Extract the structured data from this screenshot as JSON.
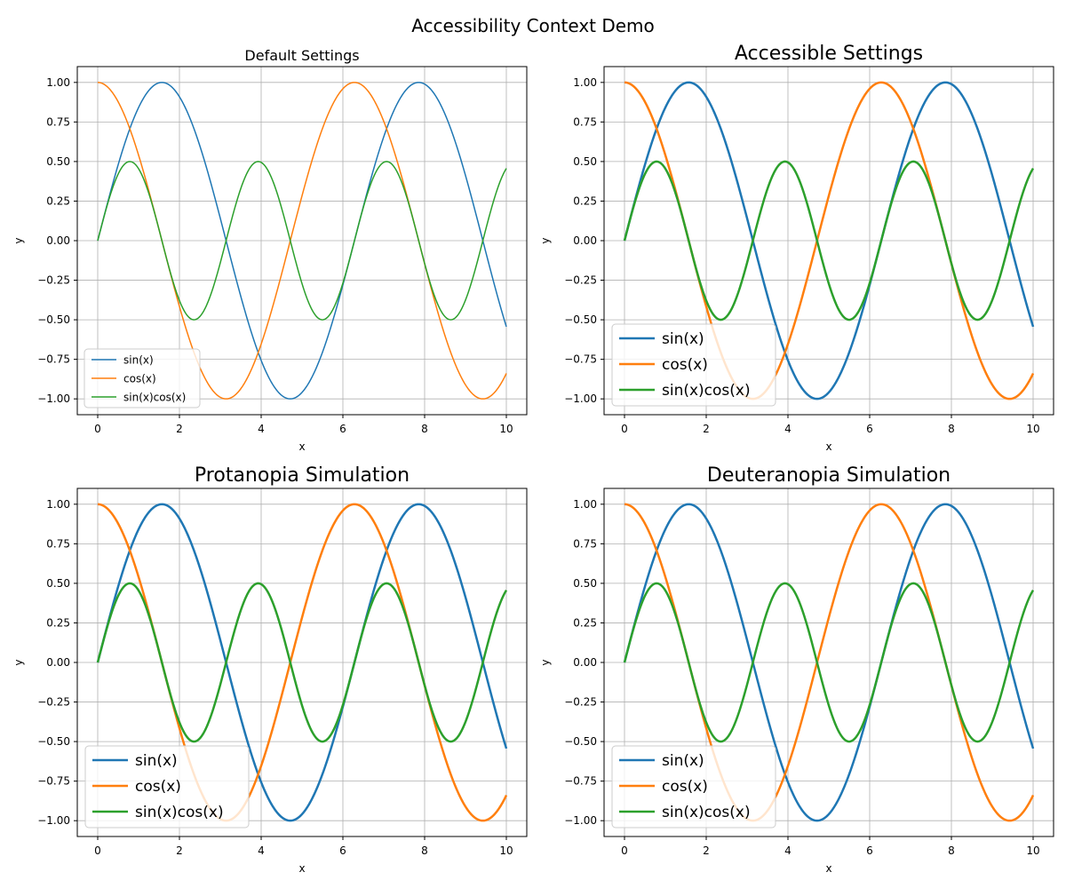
{
  "figure": {
    "suptitle": "Accessibility Context Demo"
  },
  "colors": {
    "sin": "#1f77b4",
    "cos": "#ff7f0e",
    "sincos": "#2ca02c",
    "grid": "#b0b0b0",
    "axis": "#000000"
  },
  "chart_data": [
    {
      "type": "line",
      "title": "Default Settings",
      "xlabel": "x",
      "ylabel": "y",
      "xlim": [
        -0.5,
        10.5
      ],
      "ylim": [
        -1.1,
        1.1
      ],
      "xticks": [
        0,
        2,
        4,
        6,
        8,
        10
      ],
      "xtick_labels": [
        "0",
        "2",
        "4",
        "6",
        "8",
        "10"
      ],
      "yticks": [
        1.0,
        0.75,
        0.5,
        0.25,
        0.0,
        -0.25,
        -0.5,
        -0.75,
        -1.0
      ],
      "ytick_labels": [
        "1.00",
        "0.75",
        "0.50",
        "0.25",
        "0.00",
        "−0.25",
        "−0.50",
        "−0.75",
        "−1.00"
      ],
      "grid": true,
      "legend_position": "lower-left",
      "style": "default",
      "series": [
        {
          "name": "sin(x)",
          "color": "#1f77b4",
          "x": [
            0,
            0.5,
            1,
            1.5708,
            2,
            2.5,
            3,
            3.1416,
            3.5,
            4,
            4.5,
            4.7124,
            5,
            5.5,
            6,
            6.2832,
            6.5,
            7,
            7.5,
            7.854,
            8,
            8.5,
            9,
            9.4248,
            9.5,
            10
          ],
          "y": [
            0,
            0.479,
            0.841,
            1.0,
            0.909,
            0.598,
            0.141,
            0,
            -0.351,
            -0.757,
            -0.978,
            -1.0,
            -0.959,
            -0.706,
            -0.279,
            0,
            0.215,
            0.657,
            0.938,
            1.0,
            0.989,
            0.798,
            0.412,
            0,
            -0.075,
            -0.544
          ]
        },
        {
          "name": "cos(x)",
          "color": "#ff7f0e",
          "x": [
            0,
            0.5,
            1,
            1.5708,
            2,
            2.5,
            3,
            3.1416,
            3.5,
            4,
            4.5,
            4.7124,
            5,
            5.5,
            6,
            6.2832,
            6.5,
            7,
            7.5,
            7.854,
            8,
            8.5,
            9,
            9.4248,
            9.5,
            10
          ],
          "y": [
            1.0,
            0.878,
            0.54,
            0,
            -0.416,
            -0.801,
            -0.99,
            -1.0,
            -0.936,
            -0.654,
            -0.211,
            0,
            0.284,
            0.709,
            0.96,
            1.0,
            0.977,
            0.754,
            0.347,
            0,
            -0.146,
            -0.602,
            -0.911,
            -1.0,
            -0.997,
            -0.839
          ]
        },
        {
          "name": "sin(x)cos(x)",
          "color": "#2ca02c",
          "x": [
            0,
            0.3927,
            0.7854,
            1.1781,
            1.5708,
            1.9635,
            2.3562,
            2.7489,
            3.1416,
            3.5343,
            3.927,
            4.3197,
            4.7124,
            5.1051,
            5.4978,
            5.8905,
            6.2832,
            6.6759,
            7.0686,
            7.4613,
            7.854,
            8.2467,
            8.6394,
            9.0321,
            9.4248,
            9.8175,
            10
          ],
          "y": [
            0,
            0.354,
            0.5,
            0.354,
            0,
            -0.354,
            -0.5,
            -0.354,
            0,
            0.354,
            0.5,
            0.354,
            0,
            -0.354,
            -0.5,
            -0.354,
            0,
            0.354,
            0.5,
            0.354,
            0,
            -0.354,
            -0.5,
            -0.354,
            0,
            0.354,
            0.456
          ]
        }
      ]
    },
    {
      "type": "line",
      "title": "Accessible Settings",
      "xlabel": "x",
      "ylabel": "y",
      "xlim": [
        -0.5,
        10.5
      ],
      "ylim": [
        -1.1,
        1.1
      ],
      "xticks": [
        0,
        2,
        4,
        6,
        8,
        10
      ],
      "xtick_labels": [
        "0",
        "2",
        "4",
        "6",
        "8",
        "10"
      ],
      "yticks": [
        1.0,
        0.75,
        0.5,
        0.25,
        0.0,
        -0.25,
        -0.5,
        -0.75,
        -1.0
      ],
      "ytick_labels": [
        "1.00",
        "0.75",
        "0.50",
        "0.25",
        "0.00",
        "−0.25",
        "−0.50",
        "−0.75",
        "−1.00"
      ],
      "grid": true,
      "legend_position": "lower-left",
      "style": "accessible",
      "series": [
        {
          "name": "sin(x)",
          "color": "#1f77b4",
          "x": [
            0,
            0.5,
            1,
            1.5708,
            2,
            2.5,
            3,
            3.1416,
            3.5,
            4,
            4.5,
            4.7124,
            5,
            5.5,
            6,
            6.2832,
            6.5,
            7,
            7.5,
            7.854,
            8,
            8.5,
            9,
            9.4248,
            9.5,
            10
          ],
          "y": [
            0,
            0.479,
            0.841,
            1.0,
            0.909,
            0.598,
            0.141,
            0,
            -0.351,
            -0.757,
            -0.978,
            -1.0,
            -0.959,
            -0.706,
            -0.279,
            0,
            0.215,
            0.657,
            0.938,
            1.0,
            0.989,
            0.798,
            0.412,
            0,
            -0.075,
            -0.544
          ]
        },
        {
          "name": "cos(x)",
          "color": "#ff7f0e",
          "x": [
            0,
            0.5,
            1,
            1.5708,
            2,
            2.5,
            3,
            3.1416,
            3.5,
            4,
            4.5,
            4.7124,
            5,
            5.5,
            6,
            6.2832,
            6.5,
            7,
            7.5,
            7.854,
            8,
            8.5,
            9,
            9.4248,
            9.5,
            10
          ],
          "y": [
            1.0,
            0.878,
            0.54,
            0,
            -0.416,
            -0.801,
            -0.99,
            -1.0,
            -0.936,
            -0.654,
            -0.211,
            0,
            0.284,
            0.709,
            0.96,
            1.0,
            0.977,
            0.754,
            0.347,
            0,
            -0.146,
            -0.602,
            -0.911,
            -1.0,
            -0.997,
            -0.839
          ]
        },
        {
          "name": "sin(x)cos(x)",
          "color": "#2ca02c",
          "x": [
            0,
            0.3927,
            0.7854,
            1.1781,
            1.5708,
            1.9635,
            2.3562,
            2.7489,
            3.1416,
            3.5343,
            3.927,
            4.3197,
            4.7124,
            5.1051,
            5.4978,
            5.8905,
            6.2832,
            6.6759,
            7.0686,
            7.4613,
            7.854,
            8.2467,
            8.6394,
            9.0321,
            9.4248,
            9.8175,
            10
          ],
          "y": [
            0,
            0.354,
            0.5,
            0.354,
            0,
            -0.354,
            -0.5,
            -0.354,
            0,
            0.354,
            0.5,
            0.354,
            0,
            -0.354,
            -0.5,
            -0.354,
            0,
            0.354,
            0.5,
            0.354,
            0,
            -0.354,
            -0.5,
            -0.354,
            0,
            0.354,
            0.456
          ]
        }
      ]
    },
    {
      "type": "line",
      "title": "Protanopia Simulation",
      "xlabel": "x",
      "ylabel": "y",
      "xlim": [
        -0.5,
        10.5
      ],
      "ylim": [
        -1.1,
        1.1
      ],
      "xticks": [
        0,
        2,
        4,
        6,
        8,
        10
      ],
      "xtick_labels": [
        "0",
        "2",
        "4",
        "6",
        "8",
        "10"
      ],
      "yticks": [
        1.0,
        0.75,
        0.5,
        0.25,
        0.0,
        -0.25,
        -0.5,
        -0.75,
        -1.0
      ],
      "ytick_labels": [
        "1.00",
        "0.75",
        "0.50",
        "0.25",
        "0.00",
        "−0.25",
        "−0.50",
        "−0.75",
        "−1.00"
      ],
      "grid": true,
      "legend_position": "lower-left",
      "style": "accessible",
      "series": [
        {
          "name": "sin(x)",
          "color": "#1f77b4",
          "x": [
            0,
            0.5,
            1,
            1.5708,
            2,
            2.5,
            3,
            3.1416,
            3.5,
            4,
            4.5,
            4.7124,
            5,
            5.5,
            6,
            6.2832,
            6.5,
            7,
            7.5,
            7.854,
            8,
            8.5,
            9,
            9.4248,
            9.5,
            10
          ],
          "y": [
            0,
            0.479,
            0.841,
            1.0,
            0.909,
            0.598,
            0.141,
            0,
            -0.351,
            -0.757,
            -0.978,
            -1.0,
            -0.959,
            -0.706,
            -0.279,
            0,
            0.215,
            0.657,
            0.938,
            1.0,
            0.989,
            0.798,
            0.412,
            0,
            -0.075,
            -0.544
          ]
        },
        {
          "name": "cos(x)",
          "color": "#ff7f0e",
          "x": [
            0,
            0.5,
            1,
            1.5708,
            2,
            2.5,
            3,
            3.1416,
            3.5,
            4,
            4.5,
            4.7124,
            5,
            5.5,
            6,
            6.2832,
            6.5,
            7,
            7.5,
            7.854,
            8,
            8.5,
            9,
            9.4248,
            9.5,
            10
          ],
          "y": [
            1.0,
            0.878,
            0.54,
            0,
            -0.416,
            -0.801,
            -0.99,
            -1.0,
            -0.936,
            -0.654,
            -0.211,
            0,
            0.284,
            0.709,
            0.96,
            1.0,
            0.977,
            0.754,
            0.347,
            0,
            -0.146,
            -0.602,
            -0.911,
            -1.0,
            -0.997,
            -0.839
          ]
        },
        {
          "name": "sin(x)cos(x)",
          "color": "#2ca02c",
          "x": [
            0,
            0.3927,
            0.7854,
            1.1781,
            1.5708,
            1.9635,
            2.3562,
            2.7489,
            3.1416,
            3.5343,
            3.927,
            4.3197,
            4.7124,
            5.1051,
            5.4978,
            5.8905,
            6.2832,
            6.6759,
            7.0686,
            7.4613,
            7.854,
            8.2467,
            8.6394,
            9.0321,
            9.4248,
            9.8175,
            10
          ],
          "y": [
            0,
            0.354,
            0.5,
            0.354,
            0,
            -0.354,
            -0.5,
            -0.354,
            0,
            0.354,
            0.5,
            0.354,
            0,
            -0.354,
            -0.5,
            -0.354,
            0,
            0.354,
            0.5,
            0.354,
            0,
            -0.354,
            -0.5,
            -0.354,
            0,
            0.354,
            0.456
          ]
        }
      ]
    },
    {
      "type": "line",
      "title": "Deuteranopia Simulation",
      "xlabel": "x",
      "ylabel": "y",
      "xlim": [
        -0.5,
        10.5
      ],
      "ylim": [
        -1.1,
        1.1
      ],
      "xticks": [
        0,
        2,
        4,
        6,
        8,
        10
      ],
      "xtick_labels": [
        "0",
        "2",
        "4",
        "6",
        "8",
        "10"
      ],
      "yticks": [
        1.0,
        0.75,
        0.5,
        0.25,
        0.0,
        -0.25,
        -0.5,
        -0.75,
        -1.0
      ],
      "ytick_labels": [
        "1.00",
        "0.75",
        "0.50",
        "0.25",
        "0.00",
        "−0.25",
        "−0.50",
        "−0.75",
        "−1.00"
      ],
      "grid": true,
      "legend_position": "lower-left",
      "style": "accessible",
      "series": [
        {
          "name": "sin(x)",
          "color": "#1f77b4",
          "x": [
            0,
            0.5,
            1,
            1.5708,
            2,
            2.5,
            3,
            3.1416,
            3.5,
            4,
            4.5,
            4.7124,
            5,
            5.5,
            6,
            6.2832,
            6.5,
            7,
            7.5,
            7.854,
            8,
            8.5,
            9,
            9.4248,
            9.5,
            10
          ],
          "y": [
            0,
            0.479,
            0.841,
            1.0,
            0.909,
            0.598,
            0.141,
            0,
            -0.351,
            -0.757,
            -0.978,
            -1.0,
            -0.959,
            -0.706,
            -0.279,
            0,
            0.215,
            0.657,
            0.938,
            1.0,
            0.989,
            0.798,
            0.412,
            0,
            -0.075,
            -0.544
          ]
        },
        {
          "name": "cos(x)",
          "color": "#ff7f0e",
          "x": [
            0,
            0.5,
            1,
            1.5708,
            2,
            2.5,
            3,
            3.1416,
            3.5,
            4,
            4.5,
            4.7124,
            5,
            5.5,
            6,
            6.2832,
            6.5,
            7,
            7.5,
            7.854,
            8,
            8.5,
            9,
            9.4248,
            9.5,
            10
          ],
          "y": [
            1.0,
            0.878,
            0.54,
            0,
            -0.416,
            -0.801,
            -0.99,
            -1.0,
            -0.936,
            -0.654,
            -0.211,
            0,
            0.284,
            0.709,
            0.96,
            1.0,
            0.977,
            0.754,
            0.347,
            0,
            -0.146,
            -0.602,
            -0.911,
            -1.0,
            -0.997,
            -0.839
          ]
        },
        {
          "name": "sin(x)cos(x)",
          "color": "#2ca02c",
          "x": [
            0,
            0.3927,
            0.7854,
            1.1781,
            1.5708,
            1.9635,
            2.3562,
            2.7489,
            3.1416,
            3.5343,
            3.927,
            4.3197,
            4.7124,
            5.1051,
            5.4978,
            5.8905,
            6.2832,
            6.6759,
            7.0686,
            7.4613,
            7.854,
            8.2467,
            8.6394,
            9.0321,
            9.4248,
            9.8175,
            10
          ],
          "y": [
            0,
            0.354,
            0.5,
            0.354,
            0,
            -0.354,
            -0.5,
            -0.354,
            0,
            0.354,
            0.5,
            0.354,
            0,
            -0.354,
            -0.5,
            -0.354,
            0,
            0.354,
            0.5,
            0.354,
            0,
            -0.354,
            -0.5,
            -0.354,
            0,
            0.354,
            0.456
          ]
        }
      ]
    }
  ]
}
